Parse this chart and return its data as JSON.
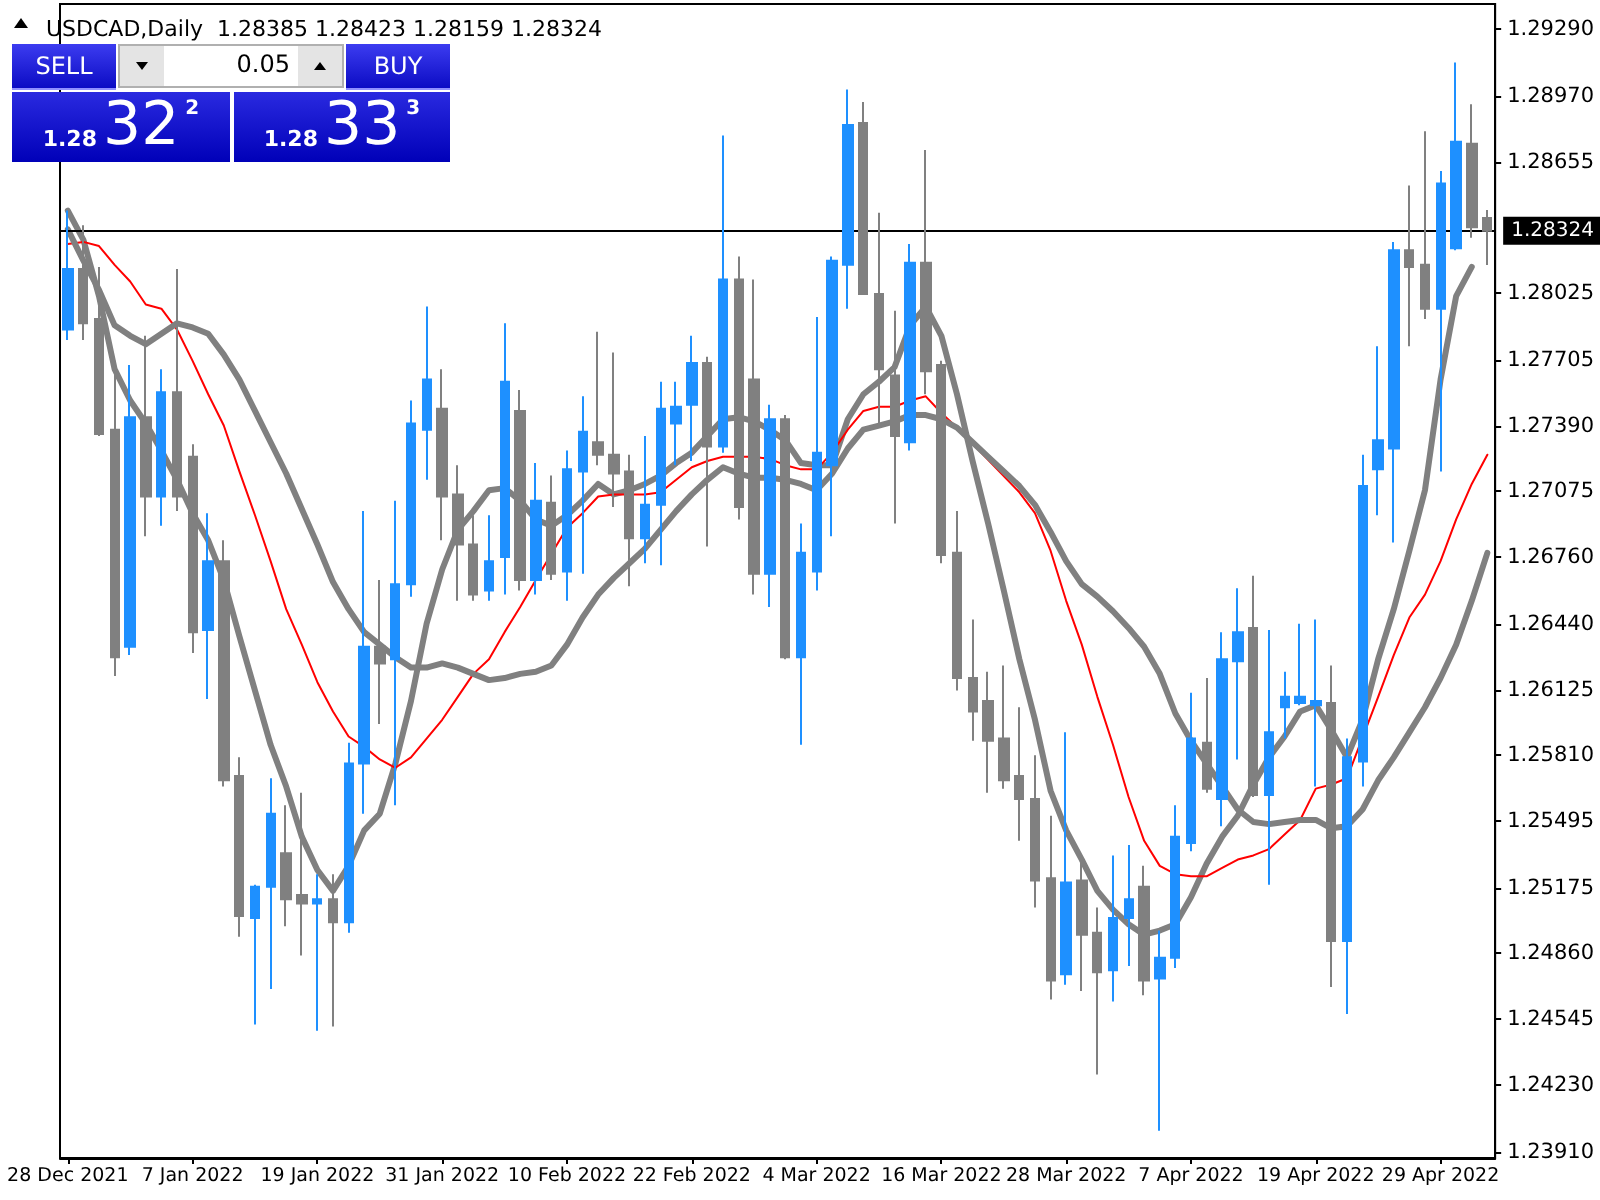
{
  "chart_data": {
    "type": "candlestick",
    "title": "USDCAD,Daily  1.28385 1.28423 1.28159 1.28324",
    "annotations": [
      "SELL",
      "0.05",
      "BUY",
      "1.28",
      "32",
      "2",
      "1.28",
      "33",
      "3"
    ],
    "categories": [
      "28 Dec 2021",
      null,
      null,
      null,
      null,
      null,
      null,
      null,
      "7 Jan 2022",
      null,
      null,
      null,
      null,
      null,
      null,
      null,
      "19 Jan 2022",
      null,
      null,
      null,
      null,
      null,
      null,
      null,
      "31 Jan 2022",
      null,
      null,
      null,
      null,
      null,
      null,
      null,
      "10 Feb 2022",
      null,
      null,
      null,
      null,
      null,
      null,
      null,
      "22 Feb 2022",
      null,
      null,
      null,
      null,
      null,
      null,
      null,
      "4 Mar 2022",
      null,
      null,
      null,
      null,
      null,
      null,
      null,
      "16 Mar 2022",
      null,
      null,
      null,
      null,
      null,
      null,
      null,
      "28 Mar 2022",
      null,
      null,
      null,
      null,
      null,
      null,
      null,
      "7 Apr 2022",
      null,
      null,
      null,
      null,
      null,
      null,
      null,
      "19 Apr 2022",
      null,
      null,
      null,
      null,
      null,
      null,
      null,
      "29 Apr 2022",
      null,
      null,
      null
    ],
    "series": [
      {
        "ohlc": [
          [
            1.2785,
            1.2842,
            1.278,
            1.2814
          ],
          [
            1.2814,
            1.2835,
            1.278,
            1.2788
          ],
          [
            1.279,
            1.2815,
            1.2734,
            1.2735
          ],
          [
            1.2737,
            1.277,
            1.2619,
            1.2628
          ],
          [
            1.2633,
            1.2768,
            1.2629,
            1.2743
          ],
          [
            1.2743,
            1.2782,
            1.2686,
            1.2705
          ],
          [
            1.2705,
            1.2766,
            1.2691,
            1.2755
          ],
          [
            1.2755,
            1.2814,
            1.2698,
            1.2705
          ],
          [
            1.2724,
            1.273,
            1.263,
            1.264
          ],
          [
            1.2641,
            1.2697,
            1.2608,
            1.2674
          ],
          [
            1.2674,
            1.2684,
            1.2566,
            1.2569
          ],
          [
            1.2571,
            1.258,
            1.2494,
            1.2504
          ],
          [
            1.2503,
            1.2519,
            1.2452,
            1.2518
          ],
          [
            1.2518,
            1.257,
            1.2469,
            1.2553
          ],
          [
            1.2534,
            1.2557,
            1.2499,
            1.2512
          ],
          [
            1.2514,
            1.2563,
            1.2485,
            1.251
          ],
          [
            1.251,
            1.2524,
            1.2449,
            1.2512
          ],
          [
            1.2512,
            1.2524,
            1.2451,
            1.2501
          ],
          [
            1.2501,
            1.2587,
            1.2496,
            1.2577
          ],
          [
            1.2577,
            1.2698,
            1.2553,
            1.2633
          ],
          [
            1.2633,
            1.2665,
            1.2596,
            1.2625
          ],
          [
            1.2627,
            1.2703,
            1.2557,
            1.2663
          ],
          [
            1.2663,
            1.2751,
            1.2657,
            1.274
          ],
          [
            1.2737,
            1.2796,
            1.2713,
            1.2761
          ],
          [
            1.2747,
            1.2766,
            1.2684,
            1.2705
          ],
          [
            1.2706,
            1.272,
            1.2655,
            1.2682
          ],
          [
            1.2682,
            1.2696,
            1.2655,
            1.2658
          ],
          [
            1.266,
            1.2696,
            1.2655,
            1.2674
          ],
          [
            1.2676,
            1.2788,
            1.2658,
            1.276
          ],
          [
            1.2746,
            1.2756,
            1.266,
            1.2665
          ],
          [
            1.2665,
            1.2721,
            1.2658,
            1.2703
          ],
          [
            1.2702,
            1.2715,
            1.2665,
            1.2668
          ],
          [
            1.2669,
            1.2727,
            1.2655,
            1.2718
          ],
          [
            1.2717,
            1.2753,
            1.2668,
            1.2736
          ],
          [
            1.2731,
            1.2784,
            1.272,
            1.2725
          ],
          [
            1.2725,
            1.2774,
            1.27,
            1.2716
          ],
          [
            1.2717,
            1.2725,
            1.2662,
            1.2685
          ],
          [
            1.2685,
            1.2734,
            1.2673,
            1.2701
          ],
          [
            1.2701,
            1.276,
            1.2672,
            1.2747
          ],
          [
            1.274,
            1.276,
            1.272,
            1.2748
          ],
          [
            1.2749,
            1.2782,
            1.2722,
            1.2769
          ],
          [
            1.2769,
            1.2772,
            1.2681,
            1.2729
          ],
          [
            1.2729,
            1.2878,
            1.2726,
            1.2809
          ],
          [
            1.2809,
            1.282,
            1.2694,
            1.27
          ],
          [
            1.2761,
            1.2809,
            1.2658,
            1.2668
          ],
          [
            1.2668,
            1.2749,
            1.2652,
            1.2742
          ],
          [
            1.2742,
            1.2744,
            1.2627,
            1.2628
          ],
          [
            1.2628,
            1.2692,
            1.2586,
            1.2678
          ],
          [
            1.2669,
            1.2791,
            1.266,
            1.2726
          ],
          [
            1.272,
            1.282,
            1.2686,
            1.2818
          ],
          [
            1.2816,
            1.29,
            1.2795,
            1.2883
          ],
          [
            1.2884,
            1.2894,
            1.2802,
            1.2802
          ],
          [
            1.2802,
            1.2841,
            1.2739,
            1.2766
          ],
          [
            1.2763,
            1.2794,
            1.2692,
            1.2734
          ],
          [
            1.2731,
            1.2826,
            1.2727,
            1.2817
          ],
          [
            1.2817,
            1.2871,
            1.2754,
            1.2765
          ],
          [
            1.2768,
            1.277,
            1.2673,
            1.2677
          ],
          [
            1.2678,
            1.2698,
            1.2612,
            1.2618
          ],
          [
            1.2618,
            1.2646,
            1.2588,
            1.2602
          ],
          [
            1.2607,
            1.2621,
            1.2563,
            1.2588
          ],
          [
            1.2589,
            1.2624,
            1.2565,
            1.2569
          ],
          [
            1.2571,
            1.2604,
            1.254,
            1.256
          ],
          [
            1.256,
            1.2581,
            1.2508,
            1.2521
          ],
          [
            1.2522,
            1.2552,
            1.2464,
            1.2473
          ],
          [
            1.2476,
            1.2592,
            1.2471,
            1.252
          ],
          [
            1.2521,
            1.2532,
            1.2468,
            1.2495
          ],
          [
            1.2496,
            1.2508,
            1.2428,
            1.2477
          ],
          [
            1.2478,
            1.2533,
            1.2463,
            1.2503
          ],
          [
            1.2503,
            1.2538,
            1.248,
            1.2512
          ],
          [
            1.2518,
            1.2528,
            1.2466,
            1.2473
          ],
          [
            1.2474,
            1.2497,
            1.2401,
            1.2484
          ],
          [
            1.2484,
            1.2557,
            1.2479,
            1.2542
          ],
          [
            1.2539,
            1.2611,
            1.2535,
            1.2589
          ],
          [
            1.2587,
            1.2618,
            1.2563,
            1.2565
          ],
          [
            1.256,
            1.264,
            1.2547,
            1.2627
          ],
          [
            1.2626,
            1.2661,
            1.2579,
            1.264
          ],
          [
            1.2642,
            1.2667,
            1.2561,
            1.2562
          ],
          [
            1.2562,
            1.2641,
            1.2519,
            1.2592
          ],
          [
            1.2604,
            1.2621,
            1.2589,
            1.2609
          ],
          [
            1.2606,
            1.2644,
            1.2605,
            1.2609
          ],
          [
            1.2605,
            1.2646,
            1.2566,
            1.2607
          ],
          [
            1.2606,
            1.2624,
            1.247,
            1.2492
          ],
          [
            1.2492,
            1.2589,
            1.2457,
            1.258
          ],
          [
            1.2578,
            1.2725,
            1.2566,
            1.271
          ],
          [
            1.2718,
            1.2777,
            1.2696,
            1.2732
          ],
          [
            1.2728,
            1.2827,
            1.2683,
            1.2823
          ],
          [
            1.2823,
            1.2854,
            1.2777,
            1.2815
          ],
          [
            1.2816,
            1.288,
            1.279,
            1.2795
          ],
          [
            1.2795,
            1.2861,
            1.2717,
            1.2855
          ],
          [
            1.2824,
            1.2913,
            1.2823,
            1.2875
          ],
          [
            1.2874,
            1.2893,
            1.2829,
            1.2834
          ],
          [
            1.28385,
            1.28423,
            1.28159,
            1.28324
          ]
        ],
        "colors": [
          "#1e90ff",
          "#808080",
          "#808080",
          "#808080",
          "#1e90ff",
          "#808080",
          "#1e90ff",
          "#808080",
          "#808080",
          "#1e90ff",
          "#808080",
          "#808080",
          "#1e90ff",
          "#1e90ff",
          "#808080",
          "#808080",
          "#1e90ff",
          "#808080",
          "#1e90ff",
          "#1e90ff",
          "#808080",
          "#1e90ff",
          "#1e90ff",
          "#1e90ff",
          "#808080",
          "#808080",
          "#808080",
          "#1e90ff",
          "#1e90ff",
          "#808080",
          "#1e90ff",
          "#808080",
          "#1e90ff",
          "#1e90ff",
          "#808080",
          "#808080",
          "#808080",
          "#1e90ff",
          "#1e90ff",
          "#1e90ff",
          "#1e90ff",
          "#808080",
          "#1e90ff",
          "#808080",
          "#808080",
          "#1e90ff",
          "#808080",
          "#1e90ff",
          "#1e90ff",
          "#1e90ff",
          "#1e90ff",
          "#808080",
          "#808080",
          "#808080",
          "#1e90ff",
          "#808080",
          "#808080",
          "#808080",
          "#808080",
          "#808080",
          "#808080",
          "#808080",
          "#808080",
          "#808080",
          "#1e90ff",
          "#808080",
          "#808080",
          "#1e90ff",
          "#1e90ff",
          "#808080",
          "#1e90ff",
          "#1e90ff",
          "#1e90ff",
          "#808080",
          "#1e90ff",
          "#1e90ff",
          "#808080",
          "#1e90ff",
          "#1e90ff",
          "#1e90ff",
          "#1e90ff",
          "#808080",
          "#1e90ff",
          "#1e90ff",
          "#1e90ff",
          "#1e90ff",
          "#808080",
          "#808080",
          "#1e90ff",
          "#1e90ff",
          "#808080",
          "#808080"
        ]
      },
      {
        "type": "line",
        "color": "#808080",
        "values": [
          1.2842,
          1.2828,
          1.2801,
          1.2766,
          1.2751,
          1.274,
          1.2727,
          1.2713,
          1.2697,
          1.2684,
          1.2665,
          1.2638,
          1.2612,
          1.2586,
          1.2566,
          1.2542,
          1.2526,
          1.2516,
          1.2528,
          1.2545,
          1.2553,
          1.2577,
          1.2607,
          1.2644,
          1.267,
          1.2689,
          1.2698,
          1.2708,
          1.2709,
          1.2703,
          1.2694,
          1.2691,
          1.2696,
          1.2703,
          1.2711,
          1.2706,
          1.2708,
          1.2711,
          1.2715,
          1.2721,
          1.2726,
          1.2734,
          1.2742,
          1.2743,
          1.2741,
          1.2737,
          1.2732,
          1.2721,
          1.272,
          1.272,
          1.2742,
          1.2754,
          1.276,
          1.2767,
          1.2787,
          1.2796,
          1.2782,
          1.2754,
          1.2722,
          1.2692,
          1.266,
          1.2627,
          1.2598,
          1.2564,
          1.2545,
          1.2531,
          1.2516,
          1.2507,
          1.25,
          1.2495,
          1.2497,
          1.25,
          1.2513,
          1.2529,
          1.2542,
          1.2552,
          1.2567,
          1.258,
          1.259,
          1.2602,
          1.2605,
          1.2593,
          1.258,
          1.2598,
          1.2627,
          1.2651,
          1.2679,
          1.2708,
          1.2761,
          1.2801,
          1.2815,
          null
        ]
      },
      {
        "type": "line",
        "color": "#ff0000",
        "values": [
          1.2826,
          1.2827,
          1.2825,
          1.2816,
          1.2808,
          1.2797,
          1.2795,
          1.2785,
          1.277,
          1.2754,
          1.2739,
          1.2717,
          1.2696,
          1.2674,
          1.2651,
          1.2634,
          1.2616,
          1.2602,
          1.259,
          1.2585,
          1.2579,
          1.2575,
          1.258,
          1.2589,
          1.2598,
          1.2609,
          1.262,
          1.2627,
          1.264,
          1.2652,
          1.2665,
          null,
          1.269,
          1.2697,
          1.2705,
          1.2706,
          1.2706,
          1.2706,
          1.2707,
          1.2713,
          1.2719,
          1.2722,
          1.2724,
          1.2724,
          1.2724,
          1.2723,
          1.272,
          1.2718,
          1.2718,
          1.2726,
          1.2737,
          1.2746,
          1.2748,
          1.2748,
          1.2751,
          1.2753,
          1.2745,
          1.2738,
          null,
          null,
          null,
          1.2707,
          1.2697,
          1.2679,
          1.2655,
          1.2634,
          1.2609,
          1.2586,
          1.2561,
          1.254,
          1.2528,
          1.2524,
          1.2523,
          1.2523,
          1.2527,
          1.2531,
          1.2533,
          1.2536,
          1.2543,
          1.255,
          1.2565,
          1.2567,
          1.257,
          null,
          1.2609,
          1.2629,
          1.2647,
          1.2658,
          1.2674,
          1.2694,
          1.2711,
          1.2725
        ]
      },
      {
        "type": "line",
        "color": "#808080",
        "values": [
          1.2833,
          1.2818,
          1.2804,
          1.2787,
          1.2782,
          1.2778,
          1.2783,
          1.2788,
          1.2786,
          1.2783,
          1.2773,
          1.2761,
          1.2746,
          1.2731,
          1.2716,
          1.2699,
          1.2682,
          1.2664,
          1.2651,
          1.264,
          1.2634,
          1.2628,
          1.2623,
          1.2623,
          1.2625,
          1.2623,
          1.262,
          1.2617,
          1.2618,
          1.262,
          1.2621,
          1.2624,
          1.2634,
          1.2647,
          1.2658,
          1.2666,
          1.2673,
          1.268,
          1.2689,
          1.2698,
          1.2706,
          1.2713,
          1.2719,
          1.2716,
          1.2714,
          1.2714,
          1.2713,
          1.2711,
          1.2708,
          1.2716,
          1.2728,
          1.2737,
          1.2739,
          1.2741,
          1.2744,
          1.2744,
          1.2742,
          1.2738,
          1.2731,
          1.2724,
          1.2717,
          1.271,
          1.2701,
          1.2688,
          1.2674,
          1.2663,
          1.2657,
          1.265,
          1.2642,
          1.2633,
          1.262,
          1.2601,
          1.2588,
          1.2577,
          1.2566,
          1.2555,
          1.2549,
          1.2548,
          1.2549,
          1.255,
          1.255,
          1.2546,
          1.2547,
          1.2555,
          1.2569,
          1.258,
          1.2592,
          1.2604,
          1.2618,
          1.2634,
          1.2655,
          1.2678
        ]
      }
    ],
    "ylim": [
      1.2388,
      1.2941
    ],
    "yticks": [
      {
        "value": 1.2391,
        "label": "1.23910"
      },
      {
        "value": 1.2423,
        "label": "1.24230"
      },
      {
        "value": 1.24545,
        "label": "1.24545"
      },
      {
        "value": 1.2486,
        "label": "1.24860"
      },
      {
        "value": 1.25175,
        "label": "1.25175"
      },
      {
        "value": 1.25495,
        "label": "1.25495"
      },
      {
        "value": 1.2581,
        "label": "1.25810"
      },
      {
        "value": 1.26125,
        "label": "1.26125"
      },
      {
        "value": 1.2644,
        "label": "1.26440"
      },
      {
        "value": 1.2676,
        "label": "1.26760"
      },
      {
        "value": 1.27075,
        "label": "1.27075"
      },
      {
        "value": 1.2739,
        "label": "1.27390"
      },
      {
        "value": 1.27705,
        "label": "1.27705"
      },
      {
        "value": 1.28025,
        "label": "1.28025"
      },
      {
        "value": 1.28655,
        "label": "1.28655"
      },
      {
        "value": 1.2897,
        "label": "1.28970"
      },
      {
        "value": 1.2929,
        "label": "1.29290"
      }
    ],
    "ref_lines": [
      {
        "axis": "y",
        "value": 1.28324,
        "label": "1.28324",
        "color": "#000000"
      }
    ],
    "grid": false,
    "marker": "none",
    "line_style": "solid"
  }
}
